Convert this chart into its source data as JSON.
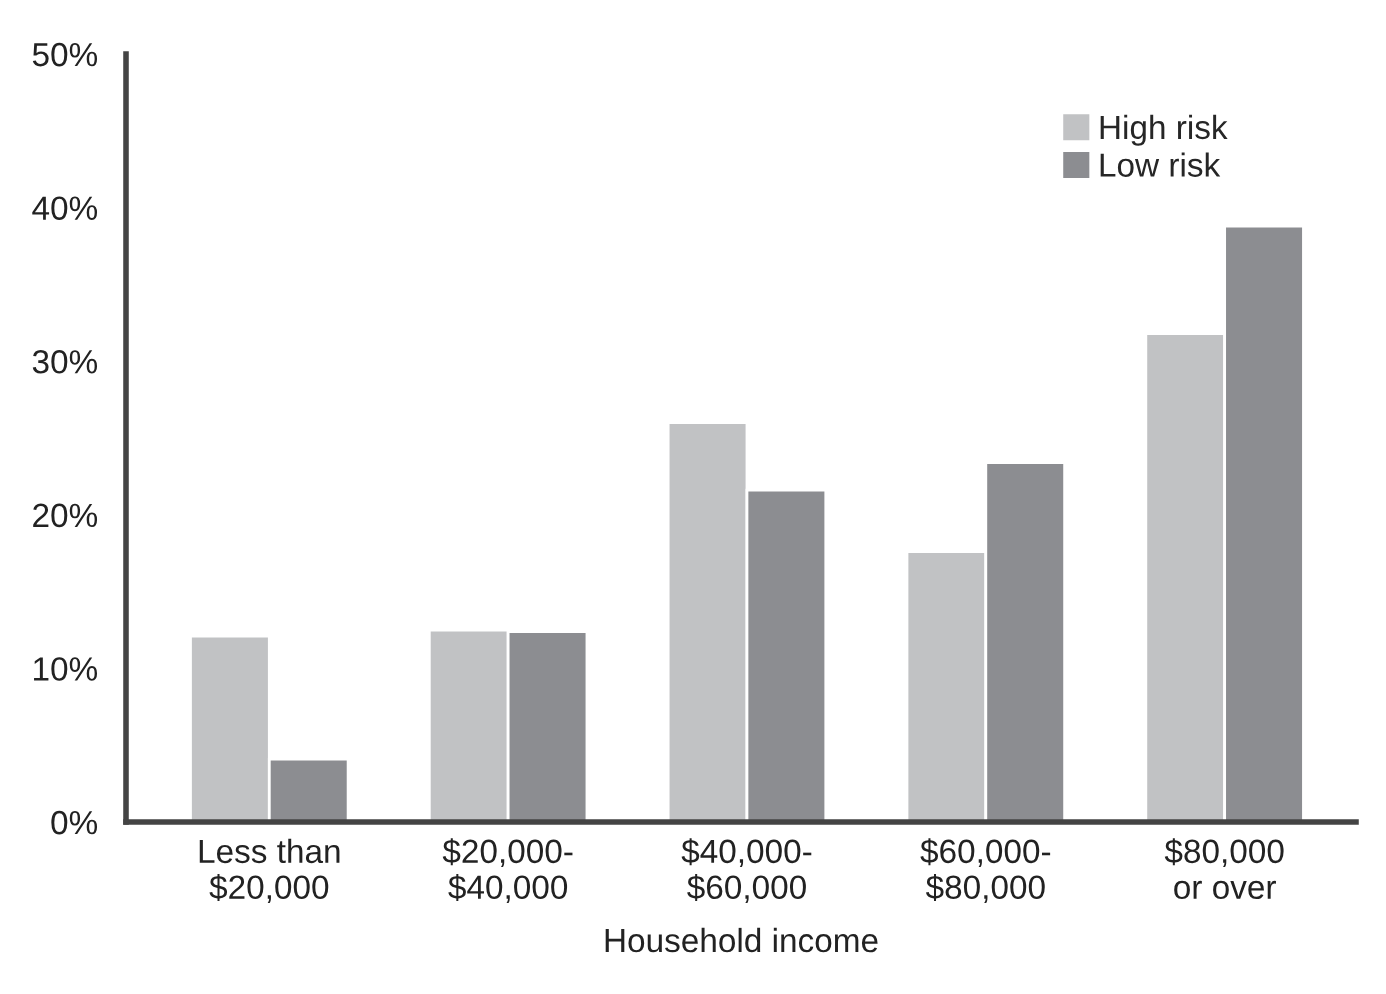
{
  "chart_data": {
    "type": "bar",
    "xlabel": "Household income",
    "categories": [
      "Less than\n$20,000",
      "$20,000-\n$40,000",
      "$40,000-\n$60,000",
      "$60,000-\n$80,000",
      "$80,000\nor over"
    ],
    "series": [
      {
        "name": "High risk",
        "color": "#c1c2c4",
        "values": [
          12.1,
          12.5,
          26.0,
          17.6,
          31.8
        ]
      },
      {
        "name": "Low risk",
        "color": "#8c8d91",
        "values": [
          4.1,
          12.4,
          21.6,
          23.4,
          38.8
        ]
      }
    ],
    "ylim": [
      0,
      50
    ],
    "yticks": [
      {
        "value": 0,
        "label": "0%"
      },
      {
        "value": 10,
        "label": "10%"
      },
      {
        "value": 20,
        "label": "20%"
      },
      {
        "value": 30,
        "label": "30%"
      },
      {
        "value": 40,
        "label": "40%"
      },
      {
        "value": 50,
        "label": "50%"
      }
    ],
    "grid": false,
    "legend": "top right"
  }
}
